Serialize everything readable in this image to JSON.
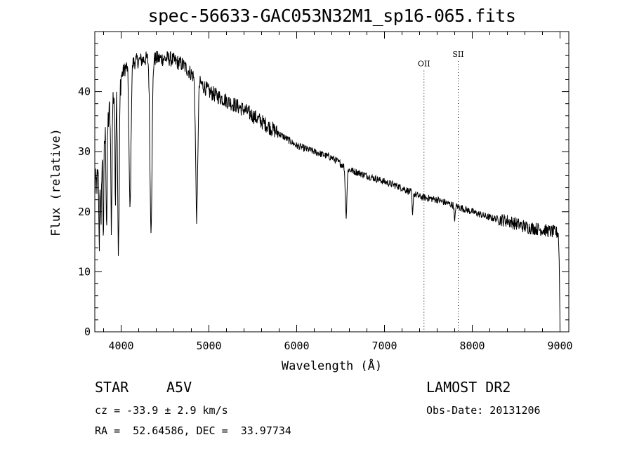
{
  "chart_data": {
    "type": "line",
    "title": "spec-56633-GAC053N32M1_sp16-065.fits",
    "xlabel": "Wavelength (Å)",
    "ylabel": "Flux (relative)",
    "xlim": [
      3700,
      9100
    ],
    "ylim": [
      0,
      50
    ],
    "xticks": [
      4000,
      5000,
      6000,
      7000,
      8000,
      9000
    ],
    "yticks": [
      0,
      10,
      20,
      30,
      40
    ],
    "grid": false,
    "continuum": [
      [
        3700,
        24
      ],
      [
        3760,
        26
      ],
      [
        3820,
        33
      ],
      [
        3900,
        39
      ],
      [
        3980,
        42
      ],
      [
        4050,
        44
      ],
      [
        4150,
        45
      ],
      [
        4300,
        45.5
      ],
      [
        4450,
        45.5
      ],
      [
        4550,
        45.5
      ],
      [
        4700,
        44.5
      ],
      [
        4800,
        43
      ],
      [
        4900,
        41.5
      ],
      [
        5000,
        40
      ],
      [
        5200,
        38.5
      ],
      [
        5400,
        37
      ],
      [
        5600,
        35
      ],
      [
        5800,
        33
      ],
      [
        6000,
        31
      ],
      [
        6200,
        30
      ],
      [
        6400,
        29
      ],
      [
        6600,
        27
      ],
      [
        6800,
        26
      ],
      [
        7000,
        25
      ],
      [
        7200,
        24
      ],
      [
        7400,
        22.5
      ],
      [
        7600,
        22
      ],
      [
        7800,
        21
      ],
      [
        8000,
        20
      ],
      [
        8200,
        19
      ],
      [
        8400,
        18.5
      ],
      [
        8600,
        17.5
      ],
      [
        8800,
        17
      ],
      [
        8970,
        16.5
      ]
    ],
    "absorption_lines": [
      {
        "x": 3750,
        "depth": 12,
        "width": 4
      },
      {
        "x": 3771,
        "depth": 12,
        "width": 4
      },
      {
        "x": 3798,
        "depth": 14,
        "width": 5
      },
      {
        "x": 3835,
        "depth": 16,
        "width": 6
      },
      {
        "x": 3889,
        "depth": 20,
        "width": 7
      },
      {
        "x": 3934,
        "depth": 18,
        "width": 5
      },
      {
        "x": 3970,
        "depth": 28,
        "width": 9
      },
      {
        "x": 4101,
        "depth": 24,
        "width": 11
      },
      {
        "x": 4340,
        "depth": 28,
        "width": 12
      },
      {
        "x": 4861,
        "depth": 23,
        "width": 12
      },
      {
        "x": 6563,
        "depth": 8,
        "width": 9
      },
      {
        "x": 7320,
        "depth": 4,
        "width": 5
      },
      {
        "x": 7800,
        "depth": 3,
        "width": 5
      }
    ],
    "markers": [
      {
        "label": "OII",
        "x": 7450,
        "label_y": 44.2
      },
      {
        "label": "SII",
        "x": 7840,
        "label_y": 45.8
      }
    ]
  },
  "info": {
    "class": "STAR",
    "subclass": "A5V",
    "survey": "LAMOST DR2",
    "cz": "cz = -33.9 ± 2.9 km/s",
    "obs_date": "Obs-Date: 20131206",
    "radec": "RA =  52.64586, DEC =  33.97734"
  }
}
